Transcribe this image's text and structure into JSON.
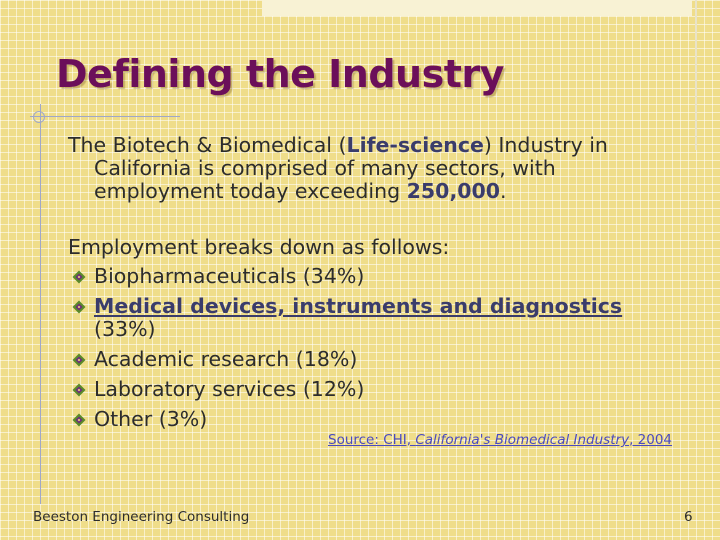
{
  "slide": {
    "title": "Defining the Industry",
    "para1": {
      "pre": "The Biotech & Biomedical (",
      "term": "Life-science",
      "mid": ") Industry in California is comprised of many sectors, with employment today exceeding ",
      "number": "250,000",
      "post": "."
    },
    "para2": "Employment breaks down as follows:",
    "bullets": [
      "Biopharmaceuticals (34%)",
      "Medical devices, instruments and diagnostics",
      "Academic research (18%)",
      "Laboratory services (12%)",
      "Other (3%)"
    ],
    "bullet2_suffix": " (33%)",
    "bullet_icon": "diamond-bullet-icon",
    "source": {
      "prefix": "Source: CHI, ",
      "title": "California's Biomedical Industry",
      "year": ", 2004"
    },
    "footer_left": "Beeston Engineering Consulting",
    "page_number": "6"
  },
  "colors": {
    "title": "#6b0f5a",
    "emphasis": "#3a3c6b",
    "bullet_green": "#5a8a2a",
    "bullet_purple": "#6b2a7a",
    "source_link": "#4a4ac0"
  }
}
